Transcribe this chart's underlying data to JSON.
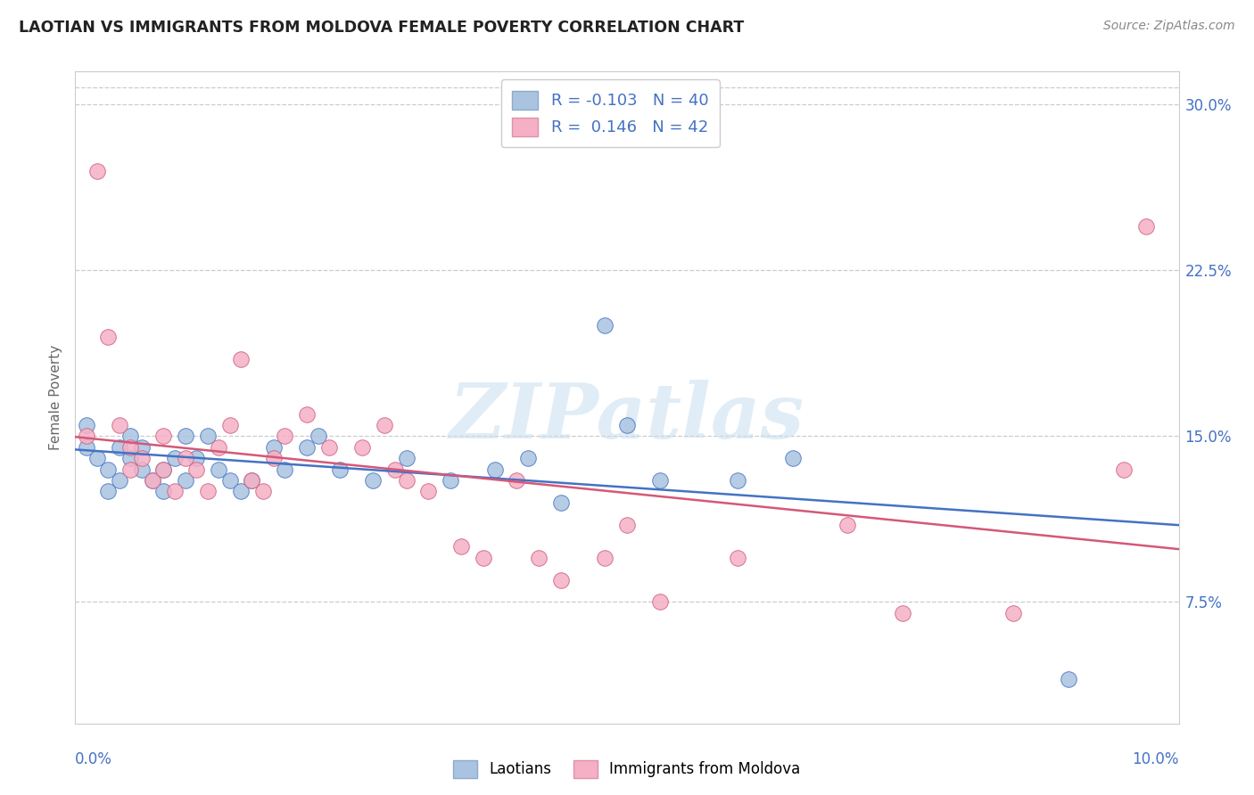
{
  "title": "LAOTIAN VS IMMIGRANTS FROM MOLDOVA FEMALE POVERTY CORRELATION CHART",
  "source": "Source: ZipAtlas.com",
  "ylabel": "Female Poverty",
  "blue_color": "#aac4e0",
  "pink_color": "#f5b0c5",
  "blue_line_color": "#4472c4",
  "pink_line_color": "#d45878",
  "blue_edge": "#4472c4",
  "pink_edge": "#cc6080",
  "watermark": "ZIPatlas",
  "xmin": 0.0,
  "xmax": 0.1,
  "ymin": 0.02,
  "ymax": 0.315,
  "yticks": [
    0.075,
    0.15,
    0.225,
    0.3
  ],
  "ytick_labels": [
    "7.5%",
    "15.0%",
    "22.5%",
    "30.0%"
  ],
  "R1": "-0.103",
  "N1": "40",
  "R2": "0.146",
  "N2": "42",
  "laotian_x": [
    0.001,
    0.001,
    0.002,
    0.003,
    0.003,
    0.004,
    0.004,
    0.005,
    0.005,
    0.006,
    0.006,
    0.007,
    0.008,
    0.008,
    0.009,
    0.01,
    0.01,
    0.011,
    0.012,
    0.013,
    0.014,
    0.015,
    0.016,
    0.018,
    0.019,
    0.021,
    0.022,
    0.024,
    0.027,
    0.03,
    0.034,
    0.038,
    0.041,
    0.044,
    0.048,
    0.05,
    0.053,
    0.06,
    0.065,
    0.09
  ],
  "laotian_y": [
    0.155,
    0.145,
    0.14,
    0.135,
    0.125,
    0.145,
    0.13,
    0.15,
    0.14,
    0.135,
    0.145,
    0.13,
    0.125,
    0.135,
    0.14,
    0.15,
    0.13,
    0.14,
    0.15,
    0.135,
    0.13,
    0.125,
    0.13,
    0.145,
    0.135,
    0.145,
    0.15,
    0.135,
    0.13,
    0.14,
    0.13,
    0.135,
    0.14,
    0.12,
    0.2,
    0.155,
    0.13,
    0.13,
    0.14,
    0.04
  ],
  "moldova_x": [
    0.001,
    0.002,
    0.003,
    0.004,
    0.005,
    0.005,
    0.006,
    0.007,
    0.008,
    0.008,
    0.009,
    0.01,
    0.011,
    0.012,
    0.013,
    0.014,
    0.015,
    0.016,
    0.017,
    0.018,
    0.019,
    0.021,
    0.023,
    0.026,
    0.028,
    0.029,
    0.03,
    0.032,
    0.035,
    0.037,
    0.04,
    0.042,
    0.044,
    0.048,
    0.05,
    0.053,
    0.06,
    0.07,
    0.075,
    0.085,
    0.095,
    0.097
  ],
  "moldova_y": [
    0.15,
    0.27,
    0.195,
    0.155,
    0.135,
    0.145,
    0.14,
    0.13,
    0.15,
    0.135,
    0.125,
    0.14,
    0.135,
    0.125,
    0.145,
    0.155,
    0.185,
    0.13,
    0.125,
    0.14,
    0.15,
    0.16,
    0.145,
    0.145,
    0.155,
    0.135,
    0.13,
    0.125,
    0.1,
    0.095,
    0.13,
    0.095,
    0.085,
    0.095,
    0.11,
    0.075,
    0.095,
    0.11,
    0.07,
    0.07,
    0.135,
    0.245
  ]
}
